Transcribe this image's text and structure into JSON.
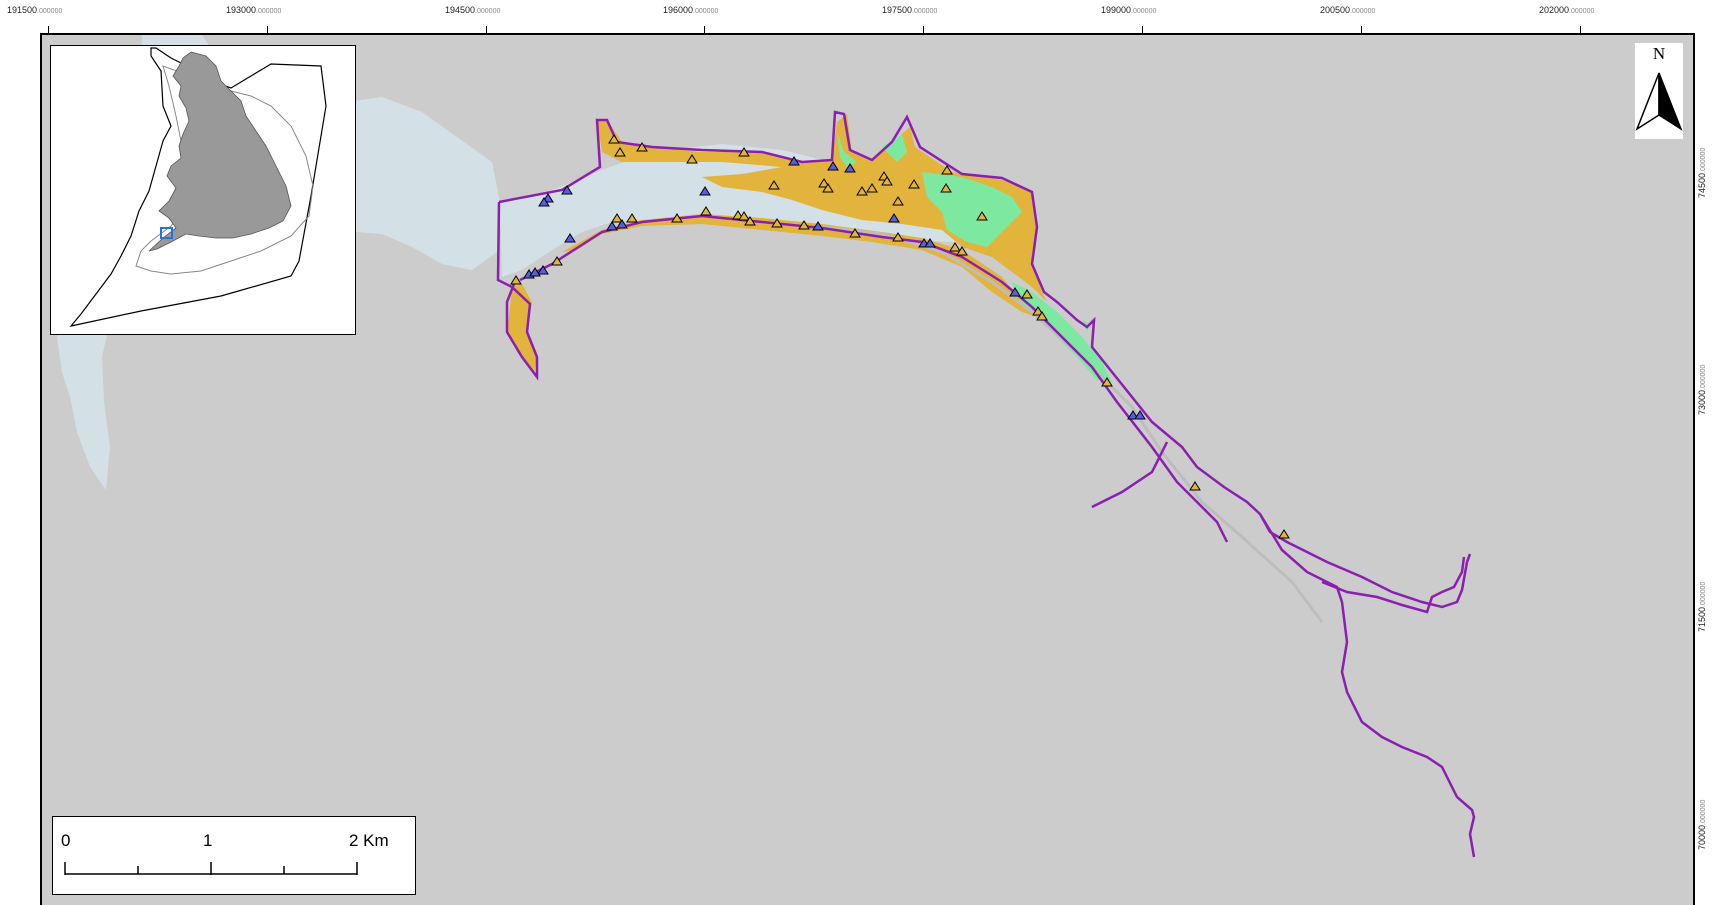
{
  "x_axis_ticks": [
    {
      "main": "191500",
      "decimals": ".000000"
    },
    {
      "main": "193000",
      "decimals": ".000000"
    },
    {
      "main": "194500",
      "decimals": ".000000"
    },
    {
      "main": "196000",
      "decimals": ".000000"
    },
    {
      "main": "197500",
      "decimals": ".000000"
    },
    {
      "main": "199000",
      "decimals": ".000000"
    },
    {
      "main": "200500",
      "decimals": ".000000"
    },
    {
      "main": "202000",
      "decimals": ".000000"
    }
  ],
  "y_axis_ticks": [
    {
      "main": "74500",
      "decimals": ".000000"
    },
    {
      "main": "73000",
      "decimals": ".000000"
    },
    {
      "main": "71500",
      "decimals": ".000000"
    },
    {
      "main": "70000",
      "decimals": ".000000"
    }
  ],
  "north_arrow": {
    "label": "N",
    "icon": "north-arrow-icon"
  },
  "scale_bar": {
    "labels": [
      "0",
      "1",
      "2 Km"
    ]
  },
  "colors": {
    "background_land": "#cccccc",
    "water": "#d3e1e6",
    "saltmarsh_orange": "#e3b43c",
    "saltmarsh_green": "#7de9a0",
    "boundary_purple": "#8a1fb0",
    "inset_land": "#999999",
    "inset_locator": "#1e73e8",
    "survey_point_orange": "#e3b43c",
    "survey_point_blue": "#5560e0"
  }
}
